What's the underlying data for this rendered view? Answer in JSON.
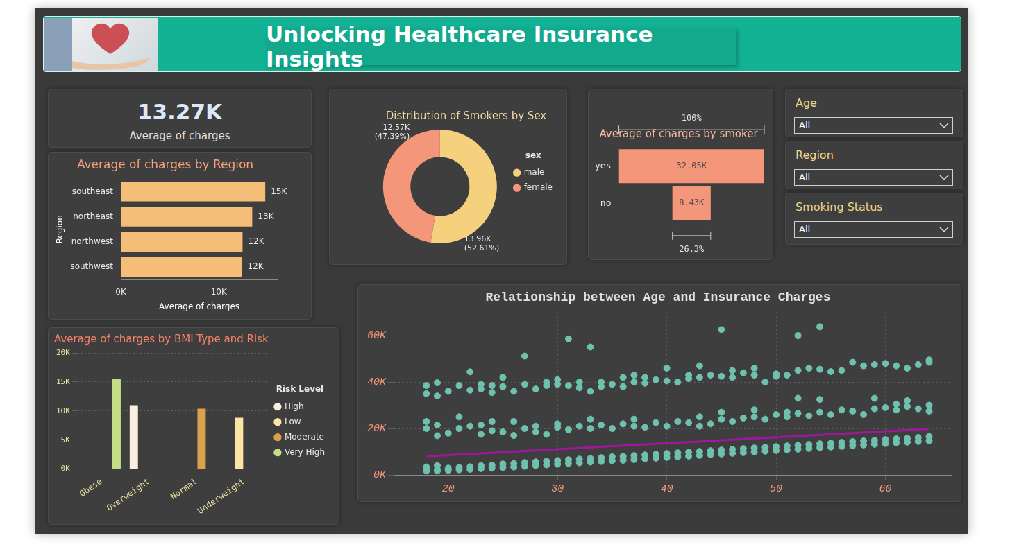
{
  "header": {
    "title": "Unlocking Healthcare Insurance Insights"
  },
  "kpi": {
    "text": "13.27K",
    "caption": "Average of charges"
  },
  "filters": [
    {
      "label": "Age",
      "value": "All"
    },
    {
      "label": "Region",
      "value": "All"
    },
    {
      "label": "Smoking Status",
      "value": "All"
    }
  ],
  "chart_data": [
    {
      "type": "bar",
      "orientation": "horizontal",
      "title": "Average of charges by Region",
      "x_label": "Average of charges",
      "y_label": "Region",
      "categories": [
        "southeast",
        "northeast",
        "northwest",
        "southwest"
      ],
      "values": [
        14735,
        13406,
        12418,
        12347
      ],
      "value_labels": [
        "15K",
        "13K",
        "12K",
        "12K"
      ],
      "data_labels": true,
      "color": "#f5be78",
      "xlim": [
        0,
        16000
      ],
      "xticks": [
        {
          "value": 0,
          "label": "0K"
        },
        {
          "value": 10000,
          "label": "10K"
        }
      ],
      "grid": false
    },
    {
      "type": "doughnut",
      "title": "Distribution of Smokers by Sex",
      "categories": [
        "male",
        "female"
      ],
      "values": [
        13956,
        12570
      ],
      "value_labels": [
        "13.96K (52.61%)",
        "12.57K (47.39%)"
      ],
      "data_labels": true,
      "colors": [
        "#f5d17e",
        "#f4967a"
      ],
      "legend": "right",
      "legend_title": "sex"
    },
    {
      "type": "funnel",
      "orientation": "horizontal",
      "title": "Average of charges by smoker",
      "categories": [
        "yes",
        "no"
      ],
      "values": [
        32050,
        8434
      ],
      "value_labels": [
        "32.05K",
        "8.43K"
      ],
      "data_labels": true,
      "color": "#f4967a",
      "tick_labels": "y",
      "annotations": [
        "100%",
        "26.3%"
      ]
    },
    {
      "type": "bar",
      "title": "Average of charges by BMI Type and Risk",
      "categories": [
        "Obese",
        "Overweight",
        "Normal",
        "Underweight"
      ],
      "series": [
        {
          "name": "High",
          "color": "#f8efdf",
          "values": [
            null,
            10988,
            null,
            null
          ]
        },
        {
          "name": "Low",
          "color": "#fde3a6",
          "values": [
            null,
            null,
            null,
            8852
          ]
        },
        {
          "name": "Moderate",
          "color": "#dca04e",
          "values": [
            null,
            null,
            10409,
            null
          ]
        },
        {
          "name": "Very High",
          "color": "#c5de85",
          "values": [
            15552,
            null,
            null,
            null
          ]
        }
      ],
      "ylim": [
        0,
        20000
      ],
      "yticks": [
        {
          "value": 0,
          "label": "0K"
        },
        {
          "value": 5000,
          "label": "5K"
        },
        {
          "value": 10000,
          "label": "10K"
        },
        {
          "value": 15000,
          "label": "15K"
        },
        {
          "value": 20000,
          "label": "20K"
        }
      ],
      "grid": true,
      "legend": "right",
      "legend_title": "Risk Level"
    },
    {
      "type": "scatter",
      "title": "Relationship between Age and Insurance Charges",
      "series": [
        {
          "color": "#6ec1ae",
          "marker": "circle",
          "x": [
            18,
            18,
            18,
            18,
            18,
            18,
            18,
            19,
            19,
            19,
            19,
            19,
            19,
            19,
            20,
            20,
            20,
            20,
            21,
            21,
            21,
            21,
            21,
            22,
            22,
            22,
            22,
            22,
            23,
            23,
            23,
            23,
            23,
            23,
            24,
            24,
            24,
            24,
            24,
            24,
            25,
            25,
            25,
            25,
            25,
            26,
            26,
            26,
            26,
            26,
            27,
            27,
            27,
            27,
            27,
            28,
            28,
            28,
            28,
            28,
            29,
            29,
            29,
            29,
            29,
            30,
            30,
            30,
            30,
            30,
            30,
            31,
            31,
            31,
            31,
            31,
            32,
            32,
            32,
            32,
            32,
            33,
            33,
            33,
            33,
            33,
            33,
            34,
            34,
            34,
            34,
            34,
            35,
            35,
            35,
            35,
            36,
            36,
            36,
            36,
            36,
            37,
            37,
            37,
            37,
            37,
            37,
            38,
            38,
            38,
            38,
            38,
            39,
            39,
            39,
            39,
            40,
            40,
            40,
            40,
            40,
            41,
            41,
            41,
            41,
            42,
            42,
            42,
            42,
            42,
            43,
            43,
            43,
            43,
            43,
            43,
            44,
            44,
            44,
            44,
            45,
            45,
            45,
            45,
            45,
            45,
            46,
            46,
            46,
            46,
            46,
            47,
            47,
            47,
            47,
            48,
            48,
            48,
            48,
            48,
            48,
            49,
            49,
            49,
            49,
            50,
            50,
            50,
            50,
            50,
            51,
            51,
            51,
            51,
            51,
            52,
            52,
            52,
            52,
            52,
            52,
            53,
            53,
            53,
            53,
            54,
            54,
            54,
            54,
            54,
            54,
            55,
            55,
            55,
            55,
            56,
            56,
            56,
            56,
            57,
            57,
            57,
            57,
            58,
            58,
            58,
            58,
            59,
            59,
            59,
            59,
            59,
            60,
            60,
            60,
            60,
            61,
            61,
            61,
            61,
            61,
            62,
            62,
            62,
            62,
            62,
            63,
            63,
            63,
            63,
            64,
            64,
            64,
            64,
            64,
            64
          ],
          "values": [
            1700,
            2200,
            3400,
            20000,
            23000,
            35000,
            38500,
            1700,
            2300,
            4000,
            16900,
            21500,
            34000,
            39700,
            2000,
            2900,
            18000,
            36000,
            2200,
            3200,
            20000,
            25000,
            38500,
            2400,
            3500,
            21000,
            36500,
            44400,
            2700,
            4000,
            17500,
            21500,
            37000,
            39000,
            2900,
            4200,
            19000,
            23000,
            35500,
            38500,
            3200,
            4700,
            18500,
            38000,
            42000,
            3400,
            4900,
            17000,
            23000,
            36000,
            3700,
            5300,
            20000,
            39000,
            51200,
            4000,
            5600,
            18500,
            21000,
            37000,
            4300,
            5900,
            17500,
            38500,
            40000,
            4600,
            6200,
            20500,
            22000,
            39000,
            41000,
            4900,
            6500,
            19500,
            38500,
            58600,
            5200,
            6800,
            21000,
            37500,
            40000,
            5500,
            7100,
            20000,
            24000,
            36000,
            55100,
            5800,
            7400,
            21500,
            38000,
            40000,
            6100,
            7800,
            20000,
            39000,
            6300,
            8000,
            22000,
            38000,
            42000,
            6600,
            8300,
            21000,
            24000,
            40000,
            43000,
            6900,
            8600,
            20500,
            39500,
            42000,
            7200,
            8900,
            22500,
            41000,
            7500,
            9200,
            21000,
            40500,
            46000,
            7800,
            9500,
            23000,
            40000,
            8100,
            9800,
            22500,
            41500,
            43000,
            8400,
            10100,
            21000,
            25000,
            42000,
            47000,
            8700,
            10400,
            22000,
            43000,
            9000,
            10700,
            24000,
            27000,
            42500,
            62600,
            9300,
            11000,
            23000,
            42000,
            45000,
            9600,
            11300,
            24500,
            44000,
            9900,
            11600,
            25000,
            28000,
            43000,
            46000,
            10200,
            11900,
            24000,
            40000,
            10500,
            12200,
            26000,
            42500,
            43500,
            10800,
            12500,
            25000,
            27000,
            43000,
            11100,
            12800,
            26500,
            33000,
            45000,
            60000,
            11400,
            13100,
            25500,
            46000,
            11700,
            13400,
            27000,
            32500,
            45500,
            63800,
            12000,
            13700,
            26000,
            44500,
            12300,
            14000,
            28000,
            45000,
            12600,
            14300,
            27500,
            48500,
            12900,
            14600,
            26000,
            47000,
            13200,
            14900,
            28500,
            33000,
            47500,
            13500,
            15200,
            29000,
            48000,
            13800,
            15500,
            28000,
            30500,
            47000,
            14100,
            15800,
            29500,
            32000,
            46000,
            14400,
            16100,
            28500,
            47500,
            14700,
            16500,
            27500,
            30000,
            48500,
            49500
          ]
        },
        {
          "type": "line",
          "color": "#a0169e",
          "line_style": "solid",
          "x": [
            18,
            64
          ],
          "values": [
            8000,
            19800
          ]
        }
      ],
      "xlim": [
        15,
        66
      ],
      "xticks": [
        20,
        30,
        40,
        50,
        60
      ],
      "ylim": [
        0,
        70000
      ],
      "yticks": [
        {
          "value": 0,
          "label": "0K"
        },
        {
          "value": 20000,
          "label": "20K"
        },
        {
          "value": 40000,
          "label": "40K"
        },
        {
          "value": 60000,
          "label": "60K"
        }
      ],
      "grid": true
    }
  ]
}
